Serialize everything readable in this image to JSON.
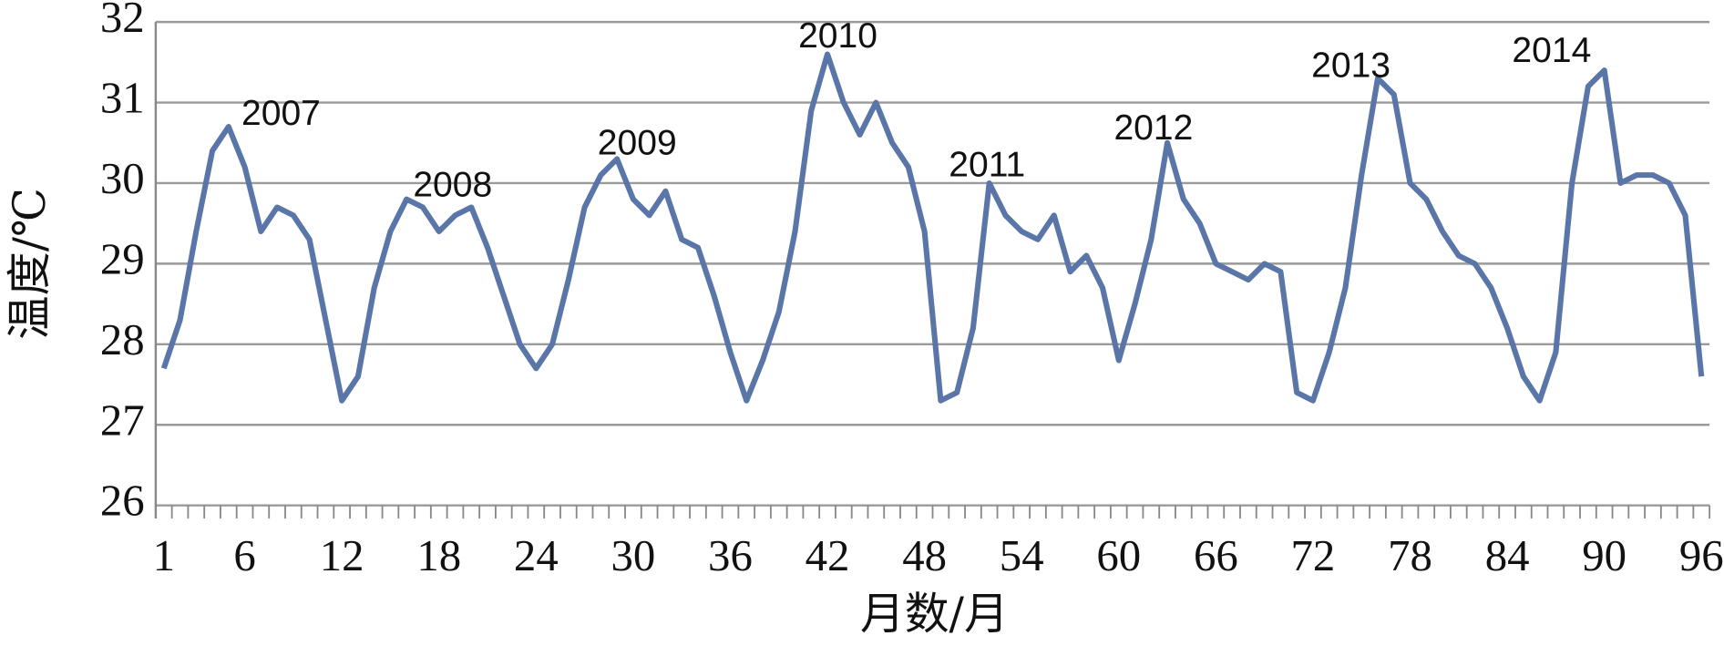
{
  "chart_data": {
    "type": "line",
    "x_label": "月数/月",
    "y_label": "温度/℃",
    "x": [
      1,
      2,
      3,
      4,
      5,
      6,
      7,
      8,
      9,
      10,
      11,
      12,
      13,
      14,
      15,
      16,
      17,
      18,
      19,
      20,
      21,
      22,
      23,
      24,
      25,
      26,
      27,
      28,
      29,
      30,
      31,
      32,
      33,
      34,
      35,
      36,
      37,
      38,
      39,
      40,
      41,
      42,
      43,
      44,
      45,
      46,
      47,
      48,
      49,
      50,
      51,
      52,
      53,
      54,
      55,
      56,
      57,
      58,
      59,
      60,
      61,
      62,
      63,
      64,
      65,
      66,
      67,
      68,
      69,
      70,
      71,
      72,
      73,
      74,
      75,
      76,
      77,
      78,
      79,
      80,
      81,
      82,
      83,
      84,
      85,
      86,
      87,
      88,
      89,
      90,
      91,
      92,
      93,
      94,
      95,
      96
    ],
    "series": [
      {
        "color": "#5a76a8",
        "values": [
          27.7,
          28.3,
          29.4,
          30.4,
          30.7,
          30.2,
          29.4,
          29.7,
          29.6,
          29.3,
          28.3,
          27.3,
          27.6,
          28.7,
          29.4,
          29.8,
          29.7,
          29.4,
          29.6,
          29.7,
          29.2,
          28.6,
          28.0,
          27.7,
          28.0,
          28.8,
          29.7,
          30.1,
          30.3,
          29.8,
          29.6,
          29.9,
          29.3,
          29.2,
          28.6,
          27.9,
          27.3,
          27.8,
          28.4,
          29.4,
          30.9,
          31.6,
          31.0,
          30.6,
          31.0,
          30.5,
          30.2,
          29.4,
          27.3,
          27.4,
          28.2,
          30.0,
          29.6,
          29.4,
          29.3,
          29.6,
          28.9,
          29.1,
          28.7,
          27.8,
          28.5,
          29.3,
          30.5,
          29.8,
          29.5,
          29.0,
          28.9,
          28.8,
          29.0,
          28.9,
          27.4,
          27.3,
          27.9,
          28.7,
          30.1,
          31.3,
          31.1,
          30.0,
          29.8,
          29.4,
          29.1,
          29.0,
          28.7,
          28.2,
          27.6,
          27.3,
          27.9,
          30.0,
          31.2,
          31.4,
          30.0,
          30.1,
          30.1,
          30.0,
          29.6,
          27.6
        ]
      }
    ],
    "xlim": [
      0.5,
      96.5
    ],
    "xticks": [
      1,
      6,
      12,
      18,
      24,
      30,
      36,
      42,
      48,
      54,
      60,
      66,
      72,
      78,
      84,
      90,
      96
    ],
    "ylim": [
      26,
      32
    ],
    "yticks": [
      26,
      27,
      28,
      29,
      30,
      31,
      32
    ],
    "grid": true,
    "annotations": [
      {
        "text": "2007",
        "x": 5.8,
        "y": 30.84
      },
      {
        "text": "2008",
        "x": 16.4,
        "y": 29.95
      },
      {
        "text": "2009",
        "x": 27.8,
        "y": 30.47
      },
      {
        "text": "2010",
        "x": 40.2,
        "y": 31.8
      },
      {
        "text": "2011",
        "x": 49.5,
        "y": 30.2
      },
      {
        "text": "2012",
        "x": 59.7,
        "y": 30.66
      },
      {
        "text": "2013",
        "x": 71.9,
        "y": 31.43
      },
      {
        "text": "2014",
        "x": 84.3,
        "y": 31.62
      }
    ]
  }
}
